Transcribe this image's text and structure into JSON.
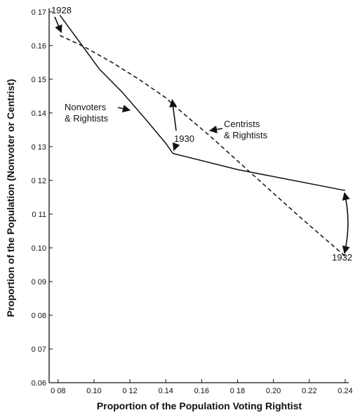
{
  "chart_data": {
    "type": "line",
    "xlabel": "Proportion of the Population Voting Rightist",
    "ylabel": "Proportion of the Population (Nonvoter or Centrist)",
    "xlim": [
      0.075,
      0.242
    ],
    "ylim": [
      0.06,
      0.171
    ],
    "x_ticks": [
      {
        "v": 0.08,
        "label": "0 08"
      },
      {
        "v": 0.1,
        "label": "0.10"
      },
      {
        "v": 0.12,
        "label": "0 12"
      },
      {
        "v": 0.14,
        "label": "0.14"
      },
      {
        "v": 0.16,
        "label": "0.16"
      },
      {
        "v": 0.18,
        "label": "0 18"
      },
      {
        "v": 0.2,
        "label": "0.20"
      },
      {
        "v": 0.22,
        "label": "0.22"
      },
      {
        "v": 0.24,
        "label": "0.24"
      }
    ],
    "y_ticks": [
      {
        "v": 0.06,
        "label": "0.06"
      },
      {
        "v": 0.07,
        "label": "0 07"
      },
      {
        "v": 0.08,
        "label": "0 08"
      },
      {
        "v": 0.09,
        "label": "0 09"
      },
      {
        "v": 0.1,
        "label": "0.10"
      },
      {
        "v": 0.11,
        "label": "0 11"
      },
      {
        "v": 0.12,
        "label": "0 12"
      },
      {
        "v": 0.13,
        "label": "0 13"
      },
      {
        "v": 0.14,
        "label": "0.14"
      },
      {
        "v": 0.15,
        "label": "0 15"
      },
      {
        "v": 0.16,
        "label": "0.16"
      },
      {
        "v": 0.17,
        "label": "0 17"
      }
    ],
    "series": [
      {
        "name": "Nonvoters & Rightists",
        "style": "solid",
        "points": [
          [
            0.081,
            0.169
          ],
          [
            0.092,
            0.161
          ],
          [
            0.103,
            0.153
          ],
          [
            0.116,
            0.146
          ],
          [
            0.129,
            0.138
          ],
          [
            0.14,
            0.131
          ],
          [
            0.144,
            0.128
          ],
          [
            0.18,
            0.1232
          ],
          [
            0.24,
            0.117
          ]
        ]
      },
      {
        "name": "Centrists & Rightists",
        "style": "dashed",
        "points": [
          [
            0.081,
            0.163
          ],
          [
            0.095,
            0.1595
          ],
          [
            0.11,
            0.155
          ],
          [
            0.125,
            0.15
          ],
          [
            0.14,
            0.1445
          ],
          [
            0.144,
            0.1425
          ],
          [
            0.165,
            0.133
          ],
          [
            0.19,
            0.121
          ],
          [
            0.215,
            0.109
          ],
          [
            0.24,
            0.0975
          ]
        ]
      }
    ],
    "annotations": [
      {
        "text": "1928",
        "arrows": [
          [
            0.081,
            0.1635
          ]
        ]
      },
      {
        "text": "1930",
        "arrows": [
          [
            0.1432,
            0.1447
          ],
          [
            0.1437,
            0.1283
          ]
        ]
      },
      {
        "text": "1932",
        "arrows": [
          [
            0.2396,
            0.1167
          ],
          [
            0.2396,
            0.098
          ]
        ]
      }
    ],
    "series_labels": [
      {
        "lines": [
          "Nonvoters",
          "& Rightists"
        ]
      },
      {
        "lines": [
          "Centrists",
          "& Rightists"
        ]
      }
    ]
  }
}
